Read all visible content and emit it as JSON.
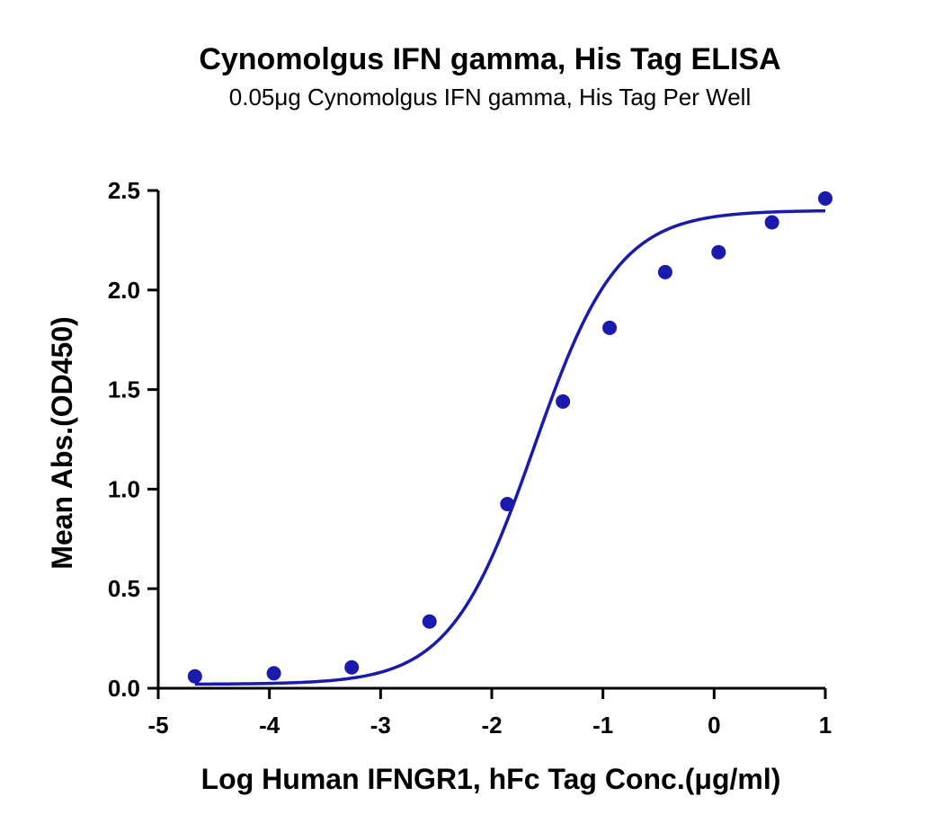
{
  "chart_data": {
    "type": "scatter",
    "title": "Cynomolgus IFN gamma, His Tag ELISA",
    "subtitle": "0.05μg Cynomolgus IFN gamma, His Tag Per Well",
    "xlabel": "Log Human IFNGR1, hFc Tag Conc.(μg/ml)",
    "ylabel": "Mean Abs.(OD450)",
    "xlim": [
      -5,
      1
    ],
    "ylim": [
      0,
      2.5
    ],
    "x_ticks": [
      "-5",
      "-4",
      "-3",
      "-2",
      "-1",
      "0",
      "1"
    ],
    "y_ticks": [
      "0.0",
      "0.5",
      "1.0",
      "1.5",
      "2.0",
      "2.5"
    ],
    "grid": false,
    "series": [
      {
        "x": [
          -4.67,
          -3.96,
          -3.26,
          -2.56,
          -1.86,
          -1.36,
          -0.94,
          -0.44,
          0.04,
          0.52,
          1.0
        ],
        "y": [
          0.06,
          0.075,
          0.105,
          0.335,
          0.925,
          1.44,
          1.81,
          2.09,
          2.19,
          2.34,
          2.46
        ],
        "color": "#1a1aad",
        "fit": "4PL",
        "fit_params": {
          "bottom": 0.02,
          "top": 2.4,
          "logEC50": -1.62,
          "hill": 1.15
        }
      }
    ]
  }
}
